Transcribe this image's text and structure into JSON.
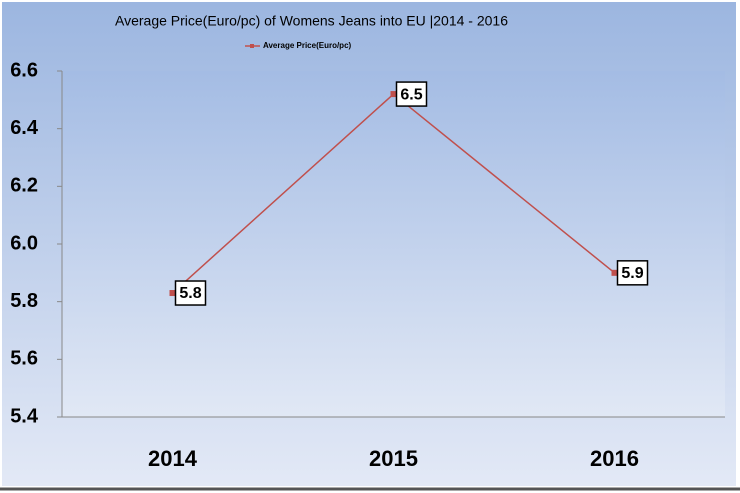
{
  "chart_data": {
    "type": "line",
    "title": "Average Price(Euro/pc) of Womens Jeans into EU |2014 - 2016",
    "categories": [
      "2014",
      "2015",
      "2016"
    ],
    "series": [
      {
        "name": "Average Price(Euro/pc)",
        "color": "#c0504d",
        "values": [
          5.83,
          6.52,
          5.9
        ],
        "value_labels": [
          "5.8",
          "6.5",
          "5.9"
        ]
      }
    ],
    "ylim": [
      5.4,
      6.6
    ],
    "yticks": [
      5.4,
      5.6,
      5.8,
      {
        "value": 6,
        "label": "6.0"
      },
      6.2,
      6.4,
      6.6
    ]
  }
}
